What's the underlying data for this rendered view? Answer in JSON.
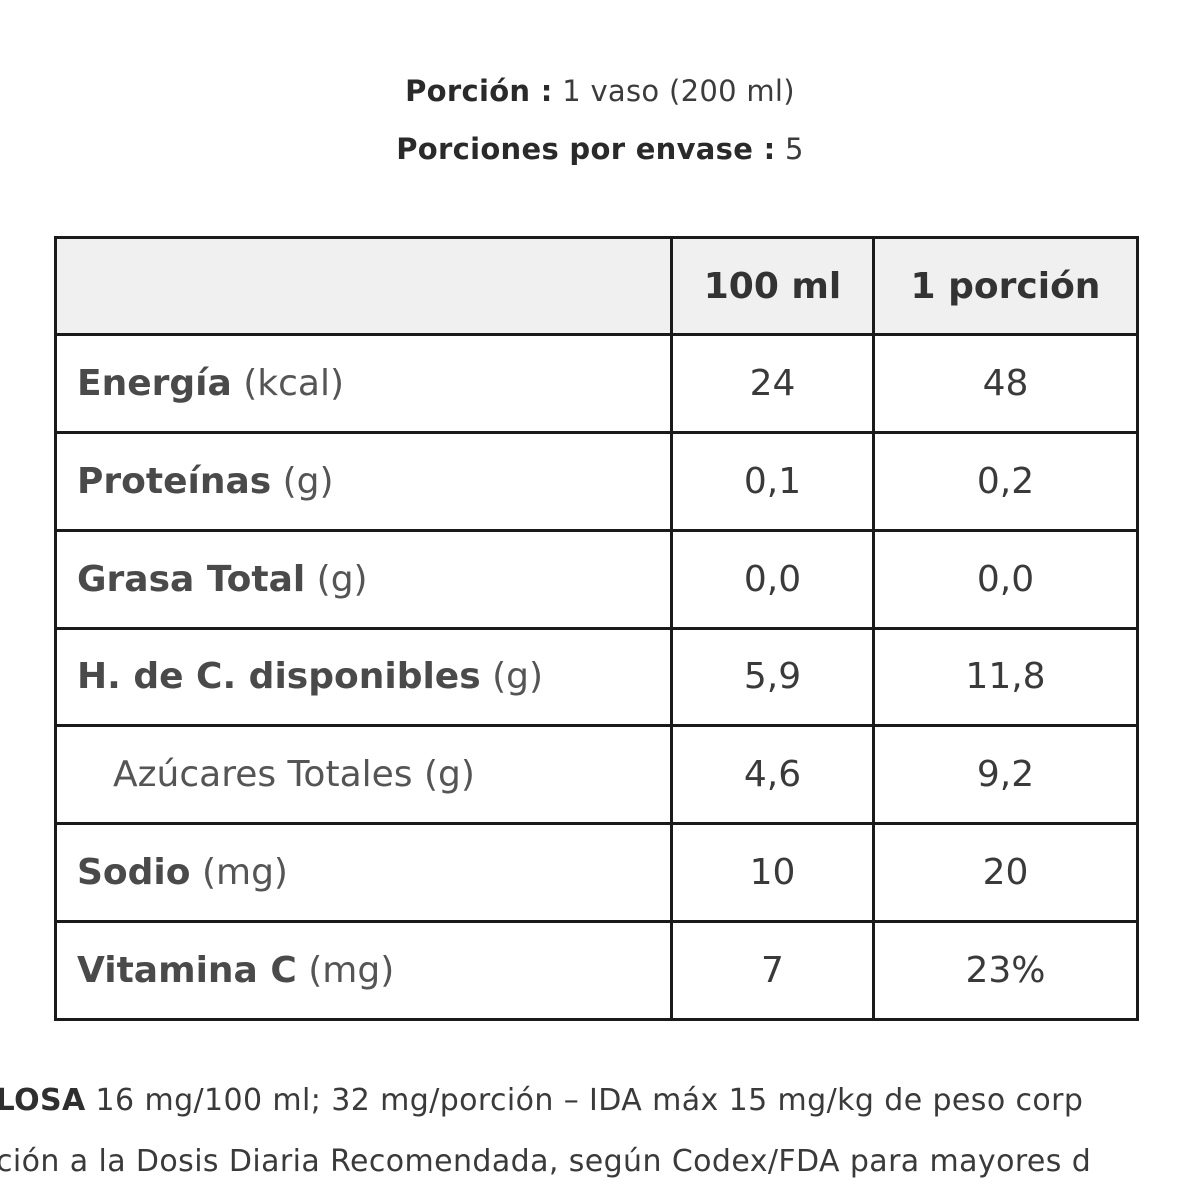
{
  "serving": {
    "size_label": "Porción :",
    "size_value": "1 vaso (200 ml)",
    "per_package_label": "Porciones por envase :",
    "per_package_value": "5"
  },
  "table": {
    "header": {
      "empty": "",
      "col1": "100 ml",
      "col2": "1 porción"
    },
    "rows": [
      {
        "name": "Energía",
        "unit": "(kcal)",
        "per100": "24",
        "portion": "48",
        "indent": false
      },
      {
        "name": "Proteínas",
        "unit": "(g)",
        "per100": "0,1",
        "portion": "0,2",
        "indent": false
      },
      {
        "name": "Grasa Total",
        "unit": "(g)",
        "per100": "0,0",
        "portion": "0,0",
        "indent": false
      },
      {
        "name": "H. de C. disponibles",
        "unit": "(g)",
        "per100": "5,9",
        "portion": "11,8",
        "indent": false
      },
      {
        "name": "Azúcares Totales",
        "unit": "(g)",
        "per100": "4,6",
        "portion": "9,2",
        "indent": true
      },
      {
        "name": "Sodio",
        "unit": "(mg)",
        "per100": "10",
        "portion": "20",
        "indent": false
      },
      {
        "name": "Vitamina C",
        "unit": "(mg)",
        "per100": "7",
        "portion": "23%",
        "indent": false
      }
    ]
  },
  "footnotes": {
    "line1_bold": "ALOSA",
    "line1_text": "16 mg/100 ml; 32 mg/porción – IDA máx 15 mg/kg de peso corp",
    "line2_text": "ción a la Dosis Diaria Recomendada, según Codex/FDA para mayores d"
  }
}
